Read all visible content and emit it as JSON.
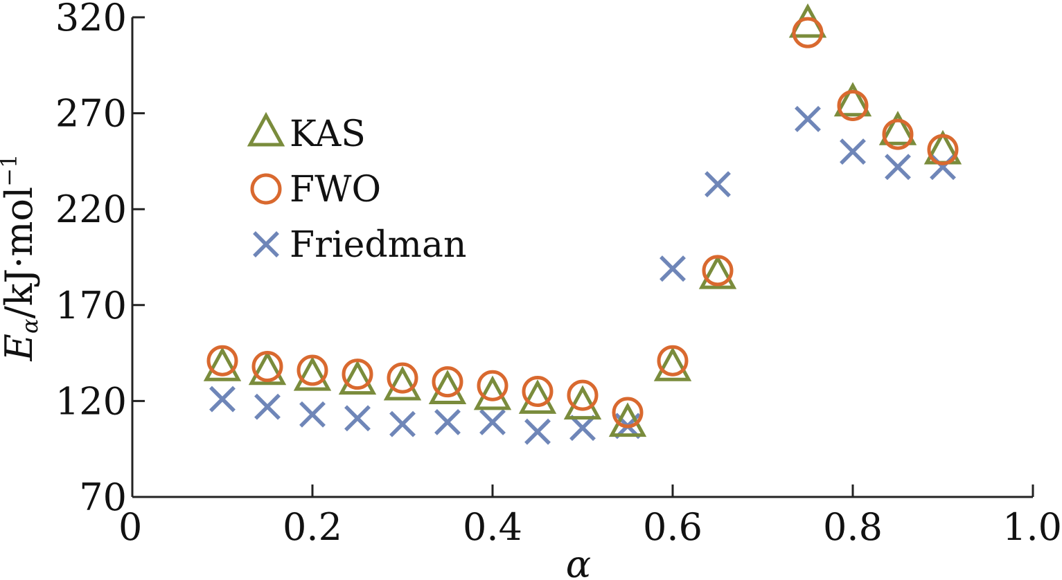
{
  "chart_data": {
    "type": "scatter",
    "title": "",
    "xlabel": "α",
    "ylabel": {
      "symbol": "E",
      "subscript": "α",
      "unit": "/kJ·mol",
      "exponent": "−1"
    },
    "xlim": [
      0,
      1.0
    ],
    "ylim": [
      70,
      320
    ],
    "x_ticks": [
      "0",
      "0.2",
      "0.4",
      "0.6",
      "0.8",
      "1.0"
    ],
    "x_tick_values": [
      0,
      0.2,
      0.4,
      0.6,
      0.8,
      1.0
    ],
    "y_ticks": [
      "70",
      "120",
      "170",
      "220",
      "270",
      "320"
    ],
    "y_tick_values": [
      70,
      120,
      170,
      220,
      270,
      320
    ],
    "grid": false,
    "legend_position": "upper-left",
    "x": [
      0.1,
      0.15,
      0.2,
      0.25,
      0.3,
      0.35,
      0.4,
      0.45,
      0.5,
      0.55,
      0.6,
      0.65,
      0.75,
      0.8,
      0.85,
      0.9
    ],
    "series": [
      {
        "name": "KAS",
        "marker": "triangle",
        "color": "#7a8c3c",
        "values": [
          137,
          135,
          132,
          130,
          127,
          125,
          122,
          120,
          117,
          108,
          137,
          185,
          316,
          275,
          260,
          250
        ]
      },
      {
        "name": "FWO",
        "marker": "circle",
        "color": "#d9692f",
        "values": [
          141,
          138,
          136,
          134,
          132,
          130,
          128,
          125,
          123,
          114,
          141,
          188,
          312,
          274,
          259,
          251
        ]
      },
      {
        "name": "Friedman",
        "marker": "cross",
        "color": "#6f86b8",
        "values": [
          121,
          117,
          113,
          111,
          108,
          109,
          109,
          104,
          106,
          107,
          189,
          233,
          267,
          250,
          242,
          242
        ]
      }
    ]
  }
}
